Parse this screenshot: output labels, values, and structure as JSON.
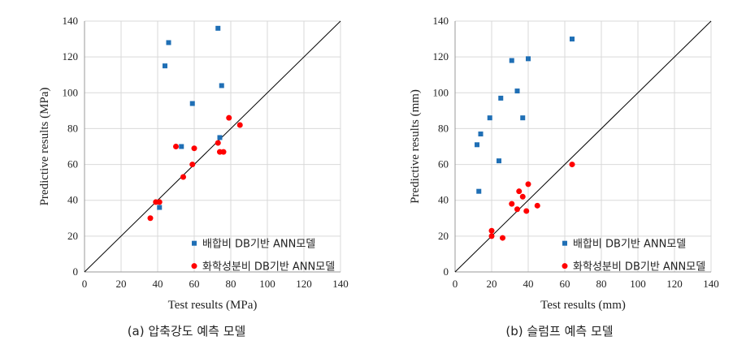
{
  "chart_data": [
    {
      "type": "scatter",
      "xlabel": "Test results (MPa)",
      "ylabel": "Predictive results (MPa)",
      "xlim": [
        0,
        140
      ],
      "ylim": [
        0,
        140
      ],
      "xticks": [
        0,
        20,
        40,
        60,
        80,
        100,
        120,
        140
      ],
      "yticks": [
        0,
        20,
        40,
        60,
        80,
        100,
        120,
        140
      ],
      "grid": true,
      "reference_line": "y = x",
      "legend_position": "bottom-right",
      "caption": "(a) 압축강도 예측 모델",
      "series": [
        {
          "name": "배합비 DB기반 ANN모델",
          "marker": "square",
          "color": "#1f6fb5",
          "points": [
            [
              41,
              36
            ],
            [
              44,
              115
            ],
            [
              46,
              128
            ],
            [
              53,
              70
            ],
            [
              59,
              94
            ],
            [
              73,
              136
            ],
            [
              74,
              75
            ],
            [
              75,
              104
            ]
          ]
        },
        {
          "name": "화학성분비 DB기반 ANN모델",
          "marker": "circle",
          "color": "#ff0000",
          "points": [
            [
              36,
              30
            ],
            [
              39,
              39
            ],
            [
              41,
              39
            ],
            [
              50,
              70
            ],
            [
              54,
              53
            ],
            [
              59,
              60
            ],
            [
              60,
              69
            ],
            [
              73,
              72
            ],
            [
              74,
              67
            ],
            [
              76,
              67
            ],
            [
              79,
              86
            ],
            [
              85,
              82
            ]
          ]
        }
      ]
    },
    {
      "type": "scatter",
      "xlabel": "Test results (mm)",
      "ylabel": "Predictive results (mm)",
      "xlim": [
        0,
        140
      ],
      "ylim": [
        0,
        140
      ],
      "xticks": [
        0,
        20,
        40,
        60,
        80,
        100,
        120,
        140
      ],
      "yticks": [
        0,
        20,
        40,
        60,
        80,
        100,
        120,
        140
      ],
      "grid": true,
      "reference_line": "y = x",
      "legend_position": "bottom-right",
      "caption": "(b) 슬럼프 예측 모델",
      "series": [
        {
          "name": "배합비 DB기반 ANN모델",
          "marker": "square",
          "color": "#1f6fb5",
          "points": [
            [
              12,
              71
            ],
            [
              13,
              45
            ],
            [
              14,
              77
            ],
            [
              19,
              86
            ],
            [
              24,
              62
            ],
            [
              25,
              97
            ],
            [
              31,
              118
            ],
            [
              34,
              101
            ],
            [
              37,
              86
            ],
            [
              40,
              119
            ],
            [
              64,
              130
            ]
          ]
        },
        {
          "name": "화학성분비 DB기반 ANN모델",
          "marker": "circle",
          "color": "#ff0000",
          "points": [
            [
              20,
              20
            ],
            [
              20,
              23
            ],
            [
              26,
              19
            ],
            [
              31,
              38
            ],
            [
              34,
              35
            ],
            [
              35,
              45
            ],
            [
              37,
              42
            ],
            [
              39,
              34
            ],
            [
              40,
              49
            ],
            [
              45,
              37
            ],
            [
              64,
              60
            ]
          ]
        }
      ]
    }
  ]
}
